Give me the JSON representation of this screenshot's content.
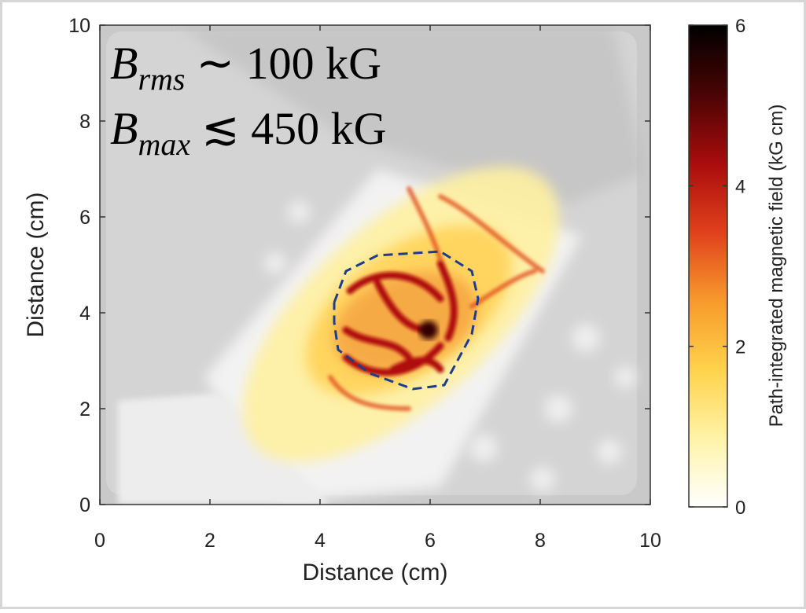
{
  "chart_data": {
    "type": "heatmap",
    "xlabel": "Distance (cm)",
    "ylabel": "Distance (cm)",
    "xlim": [
      0,
      10
    ],
    "ylim": [
      0,
      10
    ],
    "xticks": [
      0,
      2,
      4,
      6,
      8,
      10
    ],
    "yticks": [
      0,
      2,
      4,
      6,
      8,
      10
    ],
    "colorbar_label": "Path-integrated magnetic field (kG cm)",
    "clim": [
      0,
      6
    ],
    "cticks": [
      0,
      2,
      4,
      6
    ],
    "colormap": [
      "#ffffff",
      "#fff3a8",
      "#ffd24a",
      "#f79a2c",
      "#e0401c",
      "#a80c0c",
      "#4a0404",
      "#000000"
    ],
    "annotations": [
      {
        "symbol": "B",
        "subscript": "rms",
        "text": "∼ 100 kG"
      },
      {
        "symbol": "B",
        "subscript": "max",
        "text": "≲ 450 kG"
      }
    ]
  }
}
